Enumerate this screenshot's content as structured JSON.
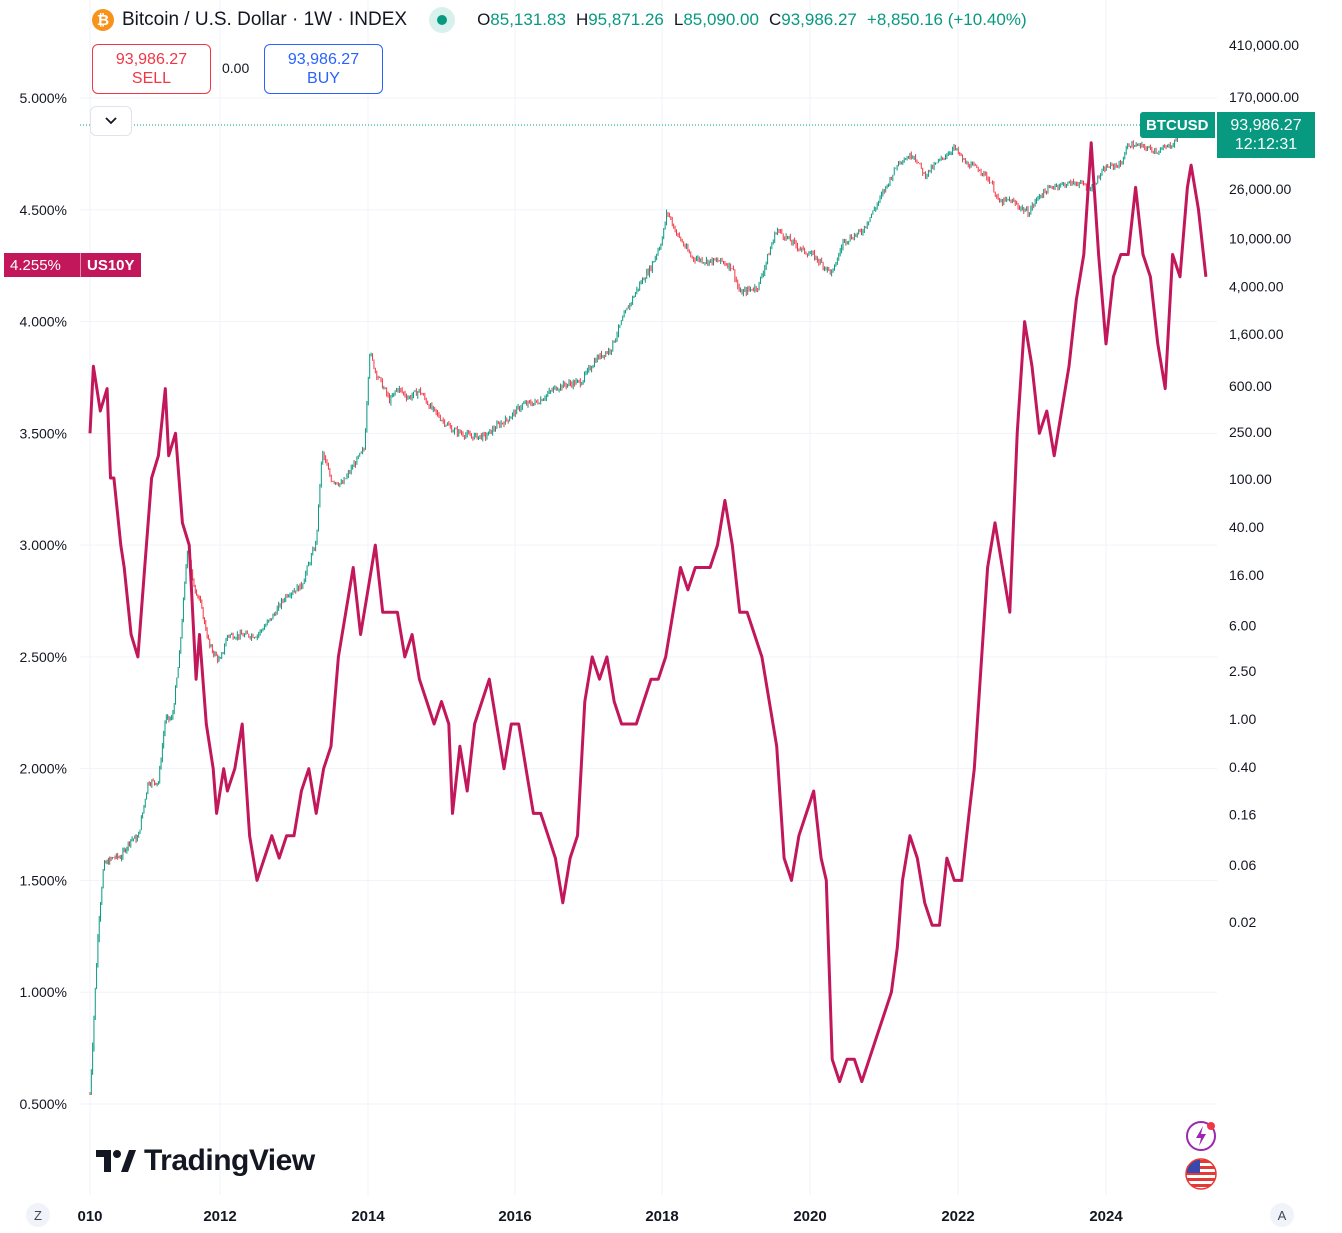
{
  "legend": {
    "coin_icon": "bitcoin-icon",
    "coin_glyph": "₿",
    "title": "Bitcoin / U.S. Dollar · 1W · INDEX",
    "ohlc": {
      "o_key": "O",
      "o": "85,131.83",
      "h_key": "H",
      "h": "95,871.26",
      "l_key": "L",
      "l": "85,090.00",
      "c_key": "C",
      "c": "93,986.27",
      "change": "+8,850.16 (+10.40%)"
    }
  },
  "trade": {
    "sell_price": "93,986.27",
    "sell_label": "SELL",
    "spread": "0.00",
    "buy_price": "93,986.27",
    "buy_label": "BUY"
  },
  "labels": {
    "us10y_value": "4.255%",
    "us10y_name": "US10Y",
    "btc_name": "BTCUSD",
    "btc_price": "93,986.27",
    "btc_countdown": "12:12:31"
  },
  "branding": {
    "logo_text": "TradingView"
  },
  "corners": {
    "left": "Z",
    "right": "A"
  },
  "colors": {
    "btc_up": "#089981",
    "btc_down": "#f23645",
    "us10y": "#c2185b",
    "grid": "#f0f3fa"
  },
  "chart_data": {
    "type": "line",
    "title": "Bitcoin / U.S. Dollar · 1W · INDEX",
    "x_tick_labels": [
      "010",
      "2012",
      "2014",
      "2016",
      "2018",
      "2020",
      "2022",
      "2024"
    ],
    "xlim": [
      2010.0,
      2025.3
    ],
    "left_axis": {
      "scale": "linear",
      "ylim": [
        0.3,
        5.2
      ],
      "ticks": [
        5.0,
        4.5,
        4.0,
        3.5,
        3.0,
        2.5,
        2.0,
        1.5,
        1.0,
        0.5
      ],
      "tick_labels": [
        "5.000%",
        "4.500%",
        "4.000%",
        "3.500%",
        "3.000%",
        "2.500%",
        "2.000%",
        "1.500%",
        "1.000%",
        "0.500%"
      ]
    },
    "right_axis": {
      "scale": "log",
      "ticks": [
        410000,
        170000,
        26000,
        10000,
        4000,
        1600,
        600,
        250,
        100,
        40,
        16,
        6,
        2.5,
        1,
        0.4,
        0.16,
        0.06,
        0.02
      ],
      "tick_labels": [
        "410,000.00",
        "170,000.00",
        "26,000.00",
        "10,000.00",
        "4,000.00",
        "1,600.00",
        "600.00",
        "250.00",
        "100.00",
        "40.00",
        "16.00",
        "6.00",
        "2.50",
        "1.00",
        "0.40",
        "0.16",
        "0.06",
        "0.02"
      ]
    },
    "series": [
      {
        "name": "BTCUSD",
        "kind": "candles",
        "axis": "right",
        "x": [
          2010.0,
          2010.2,
          2010.35,
          2010.45,
          2010.6,
          2010.7,
          2010.85,
          2011.0,
          2011.1,
          2011.2,
          2011.3,
          2011.43,
          2011.5,
          2011.6,
          2011.75,
          2011.9,
          2012.0,
          2012.2,
          2012.4,
          2012.6,
          2012.8,
          2013.0,
          2013.2,
          2013.28,
          2013.4,
          2013.55,
          2013.7,
          2013.85,
          2013.92,
          2014.0,
          2014.1,
          2014.2,
          2014.3,
          2014.45,
          2014.6,
          2014.75,
          2014.9,
          2015.05,
          2015.3,
          2015.5,
          2015.65,
          2015.8,
          2016.0,
          2016.2,
          2016.45,
          2016.6,
          2016.8,
          2017.0,
          2017.2,
          2017.4,
          2017.6,
          2017.75,
          2017.9,
          2017.97,
          2018.1,
          2018.3,
          2018.5,
          2018.7,
          2018.85,
          2018.95,
          2019.2,
          2019.45,
          2019.6,
          2019.8,
          2019.95,
          2020.2,
          2020.35,
          2020.6,
          2020.8,
          2020.95,
          2021.1,
          2021.3,
          2021.45,
          2021.6,
          2021.85,
          2022.0,
          2022.2,
          2022.35,
          2022.45,
          2022.6,
          2022.85,
          2023.0,
          2023.2,
          2023.5,
          2023.7,
          2023.9,
          2024.1,
          2024.2,
          2024.4,
          2024.6,
          2024.8,
          2024.95,
          2025.05
        ],
        "values": [
          0.003,
          0.06,
          0.07,
          0.07,
          0.1,
          0.1,
          0.3,
          0.3,
          1,
          1,
          3,
          30,
          14,
          10,
          4,
          3,
          5,
          5,
          5,
          7,
          11,
          13,
          30,
          170,
          100,
          90,
          130,
          180,
          1150,
          800,
          600,
          450,
          580,
          480,
          550,
          400,
          320,
          260,
          230,
          230,
          280,
          320,
          420,
          440,
          580,
          620,
          650,
          1000,
          1200,
          2400,
          4200,
          5800,
          9800,
          17000,
          11000,
          7000,
          6500,
          6500,
          5800,
          3500,
          4000,
          12000,
          10000,
          8000,
          7200,
          5100,
          9500,
          11500,
          19000,
          29000,
          48000,
          56000,
          35000,
          45000,
          65000,
          46000,
          40000,
          30000,
          20000,
          21000,
          16500,
          23000,
          28000,
          30000,
          27000,
          42000,
          45000,
          70000,
          66000,
          60000,
          70000,
          100000,
          94000
        ]
      },
      {
        "name": "US10Y",
        "kind": "line",
        "axis": "left",
        "x": [
          2010.0,
          2010.05,
          2010.15,
          2010.25,
          2010.3,
          2010.35,
          2010.45,
          2010.5,
          2010.6,
          2010.7,
          2010.8,
          2010.9,
          2011.0,
          2011.1,
          2011.15,
          2011.25,
          2011.35,
          2011.45,
          2011.55,
          2011.6,
          2011.7,
          2011.8,
          2011.85,
          2011.95,
          2012.0,
          2012.1,
          2012.2,
          2012.3,
          2012.4,
          2012.5,
          2012.6,
          2012.7,
          2012.8,
          2012.9,
          2013.0,
          2013.1,
          2013.2,
          2013.3,
          2013.4,
          2013.5,
          2013.6,
          2013.7,
          2013.8,
          2013.9,
          2014.0,
          2014.1,
          2014.2,
          2014.3,
          2014.4,
          2014.5,
          2014.6,
          2014.7,
          2014.8,
          2014.9,
          2015.0,
          2015.05,
          2015.15,
          2015.25,
          2015.35,
          2015.45,
          2015.55,
          2015.65,
          2015.75,
          2015.85,
          2015.95,
          2016.05,
          2016.15,
          2016.25,
          2016.35,
          2016.45,
          2016.55,
          2016.65,
          2016.75,
          2016.85,
          2016.95,
          2017.05,
          2017.15,
          2017.25,
          2017.35,
          2017.45,
          2017.55,
          2017.65,
          2017.75,
          2017.85,
          2017.95,
          2018.05,
          2018.15,
          2018.25,
          2018.35,
          2018.45,
          2018.55,
          2018.65,
          2018.75,
          2018.85,
          2018.95,
          2019.05,
          2019.15,
          2019.25,
          2019.35,
          2019.45,
          2019.55,
          2019.65,
          2019.75,
          2019.85,
          2019.95,
          2020.05,
          2020.12,
          2020.2,
          2020.3,
          2020.4,
          2020.5,
          2020.6,
          2020.7,
          2020.8,
          2020.9,
          2021.0,
          2021.08,
          2021.15,
          2021.25,
          2021.35,
          2021.45,
          2021.55,
          2021.65,
          2021.75,
          2021.85,
          2021.95,
          2022.05,
          2022.12,
          2022.2,
          2022.3,
          2022.4,
          2022.5,
          2022.6,
          2022.7,
          2022.8,
          2022.9,
          2023.0,
          2023.1,
          2023.2,
          2023.3,
          2023.4,
          2023.5,
          2023.6,
          2023.7,
          2023.8,
          2023.9,
          2024.0,
          2024.1,
          2024.2,
          2024.3,
          2024.4,
          2024.5,
          2024.6,
          2024.7,
          2024.8,
          2024.9,
          2025.0,
          2025.05,
          2025.15,
          2025.25
        ],
        "values": [
          3.5,
          3.8,
          3.6,
          3.7,
          3.3,
          3.3,
          3.0,
          2.9,
          2.6,
          2.5,
          2.9,
          3.3,
          3.4,
          3.7,
          3.4,
          3.5,
          3.1,
          3.0,
          2.4,
          2.6,
          2.2,
          2.0,
          1.8,
          2.0,
          1.9,
          2.0,
          2.2,
          1.7,
          1.5,
          1.6,
          1.7,
          1.6,
          1.7,
          1.7,
          1.9,
          2.0,
          1.8,
          2.0,
          2.1,
          2.5,
          2.7,
          2.9,
          2.6,
          2.8,
          3.0,
          2.7,
          2.7,
          2.7,
          2.5,
          2.6,
          2.4,
          2.3,
          2.2,
          2.3,
          2.2,
          1.8,
          2.1,
          1.9,
          2.2,
          2.3,
          2.4,
          2.2,
          2.0,
          2.2,
          2.2,
          2.0,
          1.8,
          1.8,
          1.7,
          1.6,
          1.4,
          1.6,
          1.7,
          2.3,
          2.5,
          2.4,
          2.5,
          2.3,
          2.2,
          2.2,
          2.2,
          2.3,
          2.4,
          2.4,
          2.5,
          2.7,
          2.9,
          2.8,
          2.9,
          2.9,
          2.9,
          3.0,
          3.2,
          3.0,
          2.7,
          2.7,
          2.6,
          2.5,
          2.3,
          2.1,
          1.6,
          1.5,
          1.7,
          1.8,
          1.9,
          1.6,
          1.5,
          0.7,
          0.6,
          0.7,
          0.7,
          0.6,
          0.7,
          0.8,
          0.9,
          1.0,
          1.2,
          1.5,
          1.7,
          1.6,
          1.4,
          1.3,
          1.3,
          1.6,
          1.5,
          1.5,
          1.8,
          2.0,
          2.4,
          2.9,
          3.1,
          2.9,
          2.7,
          3.5,
          4.0,
          3.8,
          3.5,
          3.6,
          3.4,
          3.6,
          3.8,
          4.1,
          4.3,
          4.8,
          4.3,
          3.9,
          4.2,
          4.3,
          4.3,
          4.6,
          4.3,
          4.2,
          3.9,
          3.7,
          4.3,
          4.2,
          4.6,
          4.7,
          4.5,
          4.2
        ]
      }
    ],
    "legend": "top-left",
    "grid": true
  }
}
